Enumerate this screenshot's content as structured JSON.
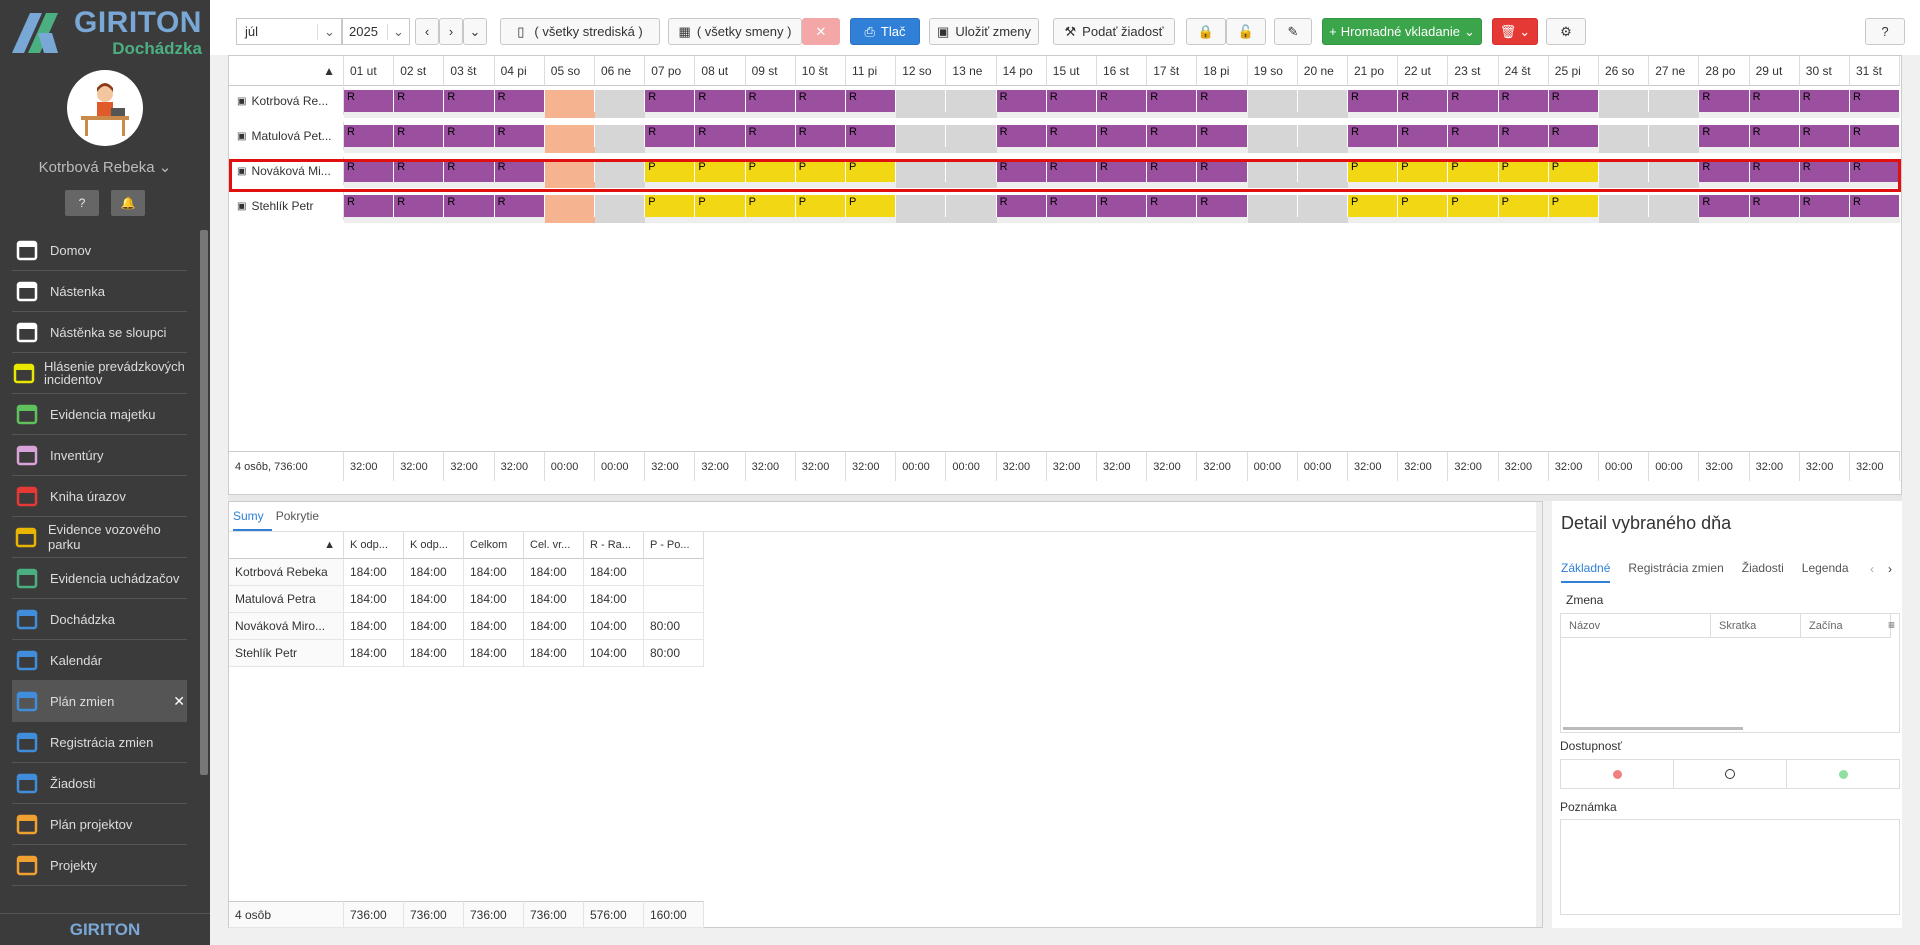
{
  "app": {
    "brand": "GIRITON",
    "subtitle": "Dochádzka",
    "user": "Kotrbová Rebeka",
    "footer": "GIRITON"
  },
  "menu": [
    {
      "label": "Domov",
      "icon": "home-icon"
    },
    {
      "label": "Nástenka",
      "icon": "bank-icon"
    },
    {
      "label": "Nástěnka se sloupci",
      "icon": "columns-icon"
    },
    {
      "label": "Hlásenie prevádzkových incidentov",
      "icon": "megaphone-icon"
    },
    {
      "label": "Evidencia majetku",
      "icon": "box-icon"
    },
    {
      "label": "Inventúry",
      "icon": "ring-icon"
    },
    {
      "label": "Kniha úrazov",
      "icon": "ambulance-icon"
    },
    {
      "label": "Evidence vozového parku",
      "icon": "car-icon"
    },
    {
      "label": "Evidencia uchádzačov",
      "icon": "user-plus-icon"
    },
    {
      "label": "Dochádzka",
      "icon": "user-icon"
    },
    {
      "label": "Kalendár",
      "icon": "calendar-icon"
    },
    {
      "label": "Plán zmien",
      "icon": "calendar-grid-icon"
    },
    {
      "label": "Registrácia zmien",
      "icon": "calendar-check-icon"
    },
    {
      "label": "Žiadosti",
      "icon": "gavel-icon"
    },
    {
      "label": "Plán projektov",
      "icon": "calendar-grid-icon"
    },
    {
      "label": "Projekty",
      "icon": "calendar-icon"
    }
  ],
  "toolbar": {
    "month": "júl",
    "year": "2025",
    "centers": "( všetky strediská )",
    "shifts": "( všetky smeny )",
    "print": "Tlač",
    "save": "Uložiť zmeny",
    "request": "Podať žiadosť",
    "bulk": "Hromadné vkladanie"
  },
  "days": [
    "01 ut",
    "02 st",
    "03 št",
    "04 pi",
    "05 so",
    "06 ne",
    "07 po",
    "08 ut",
    "09 st",
    "10 št",
    "11 pi",
    "12 so",
    "13 ne",
    "14 po",
    "15 ut",
    "16 st",
    "17 št",
    "18 pi",
    "19 so",
    "20 ne",
    "21 po",
    "22 ut",
    "23 st",
    "24 št",
    "25 pi",
    "26 so",
    "27 ne",
    "28 po",
    "29 ut",
    "30 st",
    "31 št"
  ],
  "employees": [
    {
      "name": "Kotrbová Re...",
      "row": "RRRRHWRRRRRWWRRRRRWWRRRRRWWRRRR"
    },
    {
      "name": "Matulová Pet...",
      "row": "RRRRHWRRRRRWWRRRRRWWRRRRRWWRRRR"
    },
    {
      "name": "Nováková Mi...",
      "row": "RRRRHWPPPPPWWRRRRRWWPPPPPWWRRRR"
    },
    {
      "name": "Stehlík Petr",
      "row": "RRRRHWPPPPPWWRRRRRWWPPPPPWWRRRR"
    }
  ],
  "footer": {
    "label": "4 osôb, 736:00",
    "totals": [
      "32:00",
      "32:00",
      "32:00",
      "32:00",
      "00:00",
      "00:00",
      "32:00",
      "32:00",
      "32:00",
      "32:00",
      "32:00",
      "00:00",
      "00:00",
      "32:00",
      "32:00",
      "32:00",
      "32:00",
      "32:00",
      "00:00",
      "00:00",
      "32:00",
      "32:00",
      "32:00",
      "32:00",
      "32:00",
      "00:00",
      "00:00",
      "32:00",
      "32:00",
      "32:00",
      "32:00"
    ]
  },
  "sums": {
    "tabs": [
      "Sumy",
      "Pokrytie"
    ],
    "headers": [
      "K odp...",
      "K odp...",
      "Celkom",
      "Cel. vr...",
      "R - Ra...",
      "P - Po..."
    ],
    "rows": [
      {
        "name": "Kotrbová Rebeka",
        "vals": [
          "184:00",
          "184:00",
          "184:00",
          "184:00",
          "184:00",
          ""
        ]
      },
      {
        "name": "Matulová Petra",
        "vals": [
          "184:00",
          "184:00",
          "184:00",
          "184:00",
          "184:00",
          ""
        ]
      },
      {
        "name": "Nováková Miro...",
        "vals": [
          "184:00",
          "184:00",
          "184:00",
          "184:00",
          "104:00",
          "80:00"
        ]
      },
      {
        "name": "Stehlík Petr",
        "vals": [
          "184:00",
          "184:00",
          "184:00",
          "184:00",
          "104:00",
          "80:00"
        ]
      }
    ],
    "footer": {
      "label": "4 osôb",
      "vals": [
        "736:00",
        "736:00",
        "736:00",
        "736:00",
        "576:00",
        "160:00"
      ]
    }
  },
  "detail": {
    "title": "Detail vybraného dňa",
    "tabs": [
      "Základné",
      "Registrácia zmien",
      "Žiadosti",
      "Legenda"
    ],
    "shift_label": "Zmena",
    "cols": [
      "Názov",
      "Skratka",
      "Začína"
    ],
    "availability": "Dostupnosť",
    "note": "Poznámka"
  }
}
